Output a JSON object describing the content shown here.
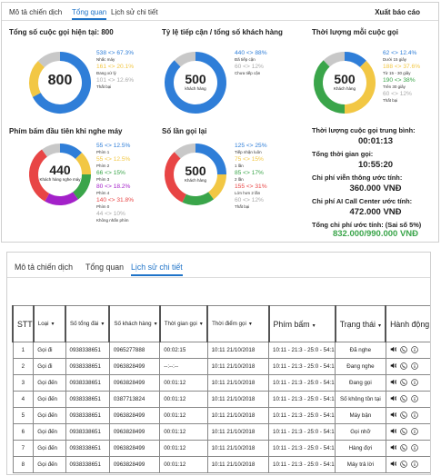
{
  "top": {
    "tabs": [
      {
        "label": "Mô tả chiến dịch",
        "active": false
      },
      {
        "label": "Tổng quan",
        "active": true
      },
      {
        "label": "Lịch sử chi tiết",
        "active": false
      }
    ],
    "report_button": "Xuất báo cáo"
  },
  "cards": {
    "total_calls": {
      "title": "Tổng số cuộc gọi hiện tại: 800",
      "center": "800",
      "segments": [
        {
          "value": "538 <> 67.3%",
          "label": "Nhấc máy",
          "color": "#2f7ed8",
          "fraction": 0.673
        },
        {
          "value": "161 <> 20.1%",
          "label": "Đang xử lý",
          "color": "#f2c744",
          "fraction": 0.201
        },
        {
          "value": "101 <> 12.6%",
          "label": "Thất bại",
          "color": "#c8c8c8",
          "fraction": 0.126
        }
      ]
    },
    "reach_rate": {
      "title": "Tỷ lệ tiếp cận / tổng số khách hàng",
      "center": "500",
      "center_sub": "khách hàng",
      "segments": [
        {
          "value": "440 <> 88%",
          "label": "Đã tiếp cận",
          "color": "#2f7ed8",
          "fraction": 0.88
        },
        {
          "value": "60 <> 12%",
          "label": "Chưa tiếp cận",
          "color": "#c8c8c8",
          "fraction": 0.12
        }
      ]
    },
    "duration": {
      "title": "Thời lượng mỗi cuộc gọi",
      "center": "500",
      "center_sub": "Khách hàng",
      "segments": [
        {
          "value": "62 <> 12.4%",
          "label": "Dưới 15 giây",
          "color": "#2f7ed8",
          "fraction": 0.124
        },
        {
          "value": "188 <> 37.6%",
          "label": "Từ 15 - 30 giây",
          "color": "#f2c744",
          "fraction": 0.376
        },
        {
          "value": "190 <> 38%",
          "label": "Trên 30 giây",
          "color": "#3aa54a",
          "fraction": 0.38
        },
        {
          "value": "60 <> 12%",
          "label": "Thất bại",
          "color": "#c8c8c8",
          "fraction": 0.12
        }
      ]
    },
    "first_key": {
      "title": "Phím bấm đầu tiên khi nghe máy",
      "center": "440",
      "center_sub": "Khách hàng nghe máy",
      "segments": [
        {
          "value": "55 <> 12.5%",
          "label": "Phím 1",
          "color": "#2f7ed8",
          "fraction": 0.125
        },
        {
          "value": "55 <> 12.5%",
          "label": "Phím 2",
          "color": "#f2c744",
          "fraction": 0.125
        },
        {
          "value": "66 <> 15%",
          "label": "Phím 3",
          "color": "#3aa54a",
          "fraction": 0.15
        },
        {
          "value": "80 <> 18.2%",
          "label": "Phím 4",
          "color": "#a321c9",
          "fraction": 0.182
        },
        {
          "value": "140 <> 31.8%",
          "label": "Phím 0",
          "color": "#e84545",
          "fraction": 0.318
        },
        {
          "value": "44 <> 10%",
          "label": "Không nhấn phím",
          "color": "#c8c8c8",
          "fraction": 0.1
        }
      ]
    },
    "call_count": {
      "title": "Số lần gọi lại",
      "center": "500",
      "center_sub": "Khách hàng",
      "segments": [
        {
          "value": "125 <> 25%",
          "label": "Tiếp nhận luôn",
          "color": "#2f7ed8",
          "fraction": 0.25
        },
        {
          "value": "75 <> 15%",
          "label": "1 lần",
          "color": "#f2c744",
          "fraction": 0.15
        },
        {
          "value": "85 <> 17%",
          "label": "2 lần",
          "color": "#3aa54a",
          "fraction": 0.17
        },
        {
          "value": "155 <> 31%",
          "label": "Lớn hơn 2 lần",
          "color": "#e84545",
          "fraction": 0.31
        },
        {
          "value": "60 <> 12%",
          "label": "Thất bại",
          "color": "#c8c8c8",
          "fraction": 0.12
        }
      ]
    }
  },
  "stats": {
    "avg_duration_label": "Thời lượng cuộc gọi trung bình:",
    "avg_duration": "00:01:13",
    "total_time_label": "Tổng thời gian gọi:",
    "total_time": "10:55:20",
    "telecom_cost_label": "Chi phí viễn thông ước tính:",
    "telecom_cost": "360.000 VNĐ",
    "ai_cost_label": "Chi phí AI Call Center ước tính:",
    "ai_cost": "472.000 VNĐ",
    "total_cost_label": "Tổng chi phí ước tính: (Sai số 5%)",
    "total_cost": "832.000/990.000 VNĐ"
  },
  "bottom": {
    "tabs": [
      {
        "label": "Mô tả chiến dịch",
        "active": false
      },
      {
        "label": "Tổng quan",
        "active": false
      },
      {
        "label": "Lịch sử chi tiết",
        "active": true
      }
    ],
    "columns": [
      "STT",
      "Loại",
      "Số tổng đài",
      "Số khách hàng",
      "Thời gian gọi",
      "Thời điểm gọi",
      "Phím bấm",
      "Trạng thái",
      "Hành động"
    ],
    "rows": [
      [
        "1",
        "Gọi đi",
        "0938338651",
        "0965277888",
        "00:02:15",
        "10:11 21/10/2018",
        "10:11 - 21:3 - 25:0 - 54:1",
        "Đã nghe"
      ],
      [
        "2",
        "Gọi đi",
        "0938338651",
        "0963828499",
        "--:--:--",
        "10:11 21/10/2018",
        "10:11 - 21:3 - 25:0 - 54:1",
        "Đang nghe"
      ],
      [
        "3",
        "Gọi đến",
        "0938338651",
        "0963828499",
        "00:01:12",
        "10:11 21/10/2018",
        "10:11 - 21:3 - 25:0 - 54:1",
        "Đang gọi"
      ],
      [
        "4",
        "Gọi đến",
        "0938338651",
        "0387713824",
        "00:01:12",
        "10:11 21/10/2018",
        "10:11 - 21:3 - 25:0 - 54:1",
        "Số không tồn tại"
      ],
      [
        "5",
        "Gọi đến",
        "0938338651",
        "0963828499",
        "00:01:12",
        "10:11 21/10/2018",
        "10:11 - 21:3 - 25:0 - 54:1",
        "Máy bận"
      ],
      [
        "6",
        "Gọi đến",
        "0938338651",
        "0963828499",
        "00:01:12",
        "10:11 21/10/2018",
        "10:11 - 21:3 - 25:0 - 54:1",
        "Gọi nhỡ"
      ],
      [
        "7",
        "Gọi đến",
        "0938338651",
        "0963828499",
        "00:01:12",
        "10:11 21/10/2018",
        "10:11 - 21:3 - 25:0 - 54:1",
        "Hàng đợi"
      ],
      [
        "8",
        "Gọi đến",
        "0938338651",
        "0963828499",
        "00:01:12",
        "10:11 21/10/2018",
        "10:11 - 21:3 - 25:0 - 54:1",
        "Máy trả lời"
      ]
    ]
  }
}
